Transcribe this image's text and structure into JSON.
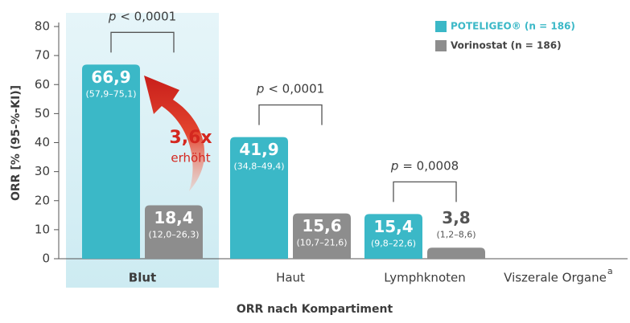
{
  "chart_data": {
    "type": "bar",
    "y_label": "ORR [% (95-%-KI)]",
    "x_label": "ORR nach Kompartiment",
    "categories": [
      "Blut",
      "Haut",
      "Lymphknoten",
      "Viszerale Organe"
    ],
    "category_superscripts": [
      null,
      null,
      null,
      "a"
    ],
    "highlight_category": 0,
    "series": [
      {
        "name": "POTELIGEO® (n = 186)",
        "color": "#3bb8c7",
        "values": [
          66.9,
          41.9,
          15.4,
          null
        ],
        "value_labels": [
          "66,9",
          "41,9",
          "15,4",
          null
        ],
        "ci_labels": [
          "(57,9–75,1)",
          "(34,8–49,4)",
          "(9,8–22,6)",
          null
        ]
      },
      {
        "name": "Vorinostat (n = 186)",
        "color": "#8d8d8d",
        "values": [
          18.4,
          15.6,
          3.8,
          null
        ],
        "value_labels": [
          "18,4",
          "15,6",
          "3,8",
          null
        ],
        "ci_labels": [
          "(12,0–26,3)",
          "(10,7–21,6)",
          "(1,2–8,6)",
          null
        ]
      }
    ],
    "p_values": [
      {
        "category": 0,
        "symbol": "p",
        "text": "< 0,0001"
      },
      {
        "category": 1,
        "symbol": "p",
        "text": "< 0,0001"
      },
      {
        "category": 2,
        "symbol": "p",
        "text": "= 0,0008"
      }
    ],
    "annotation": {
      "category": 0,
      "title": "3,6x",
      "text": "erhöht",
      "color": "#d4271f"
    },
    "ylim": [
      0,
      80
    ],
    "yticks": [
      0,
      10,
      20,
      30,
      40,
      50,
      60,
      70,
      80
    ],
    "legend": "top-right"
  }
}
